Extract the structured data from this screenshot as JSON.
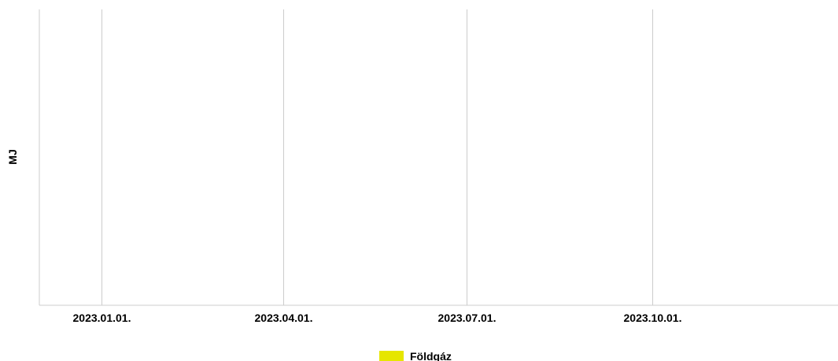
{
  "chart_data": {
    "type": "area",
    "ylabel": "MJ",
    "x_ticks": [
      "2023.01.01.",
      "2023.04.01.",
      "2023.07.01.",
      "2023.10.01."
    ],
    "x_tick_dates": [
      "2023-01-01",
      "2023-04-01",
      "2023-07-01",
      "2023-10-01"
    ],
    "xlim": [
      "2022-12-01",
      "2024-01-01"
    ],
    "grid": "vertical",
    "legend_position": "bottom-center",
    "series": [
      {
        "name": "Földgáz",
        "color": "#e6e600",
        "values": []
      }
    ]
  }
}
